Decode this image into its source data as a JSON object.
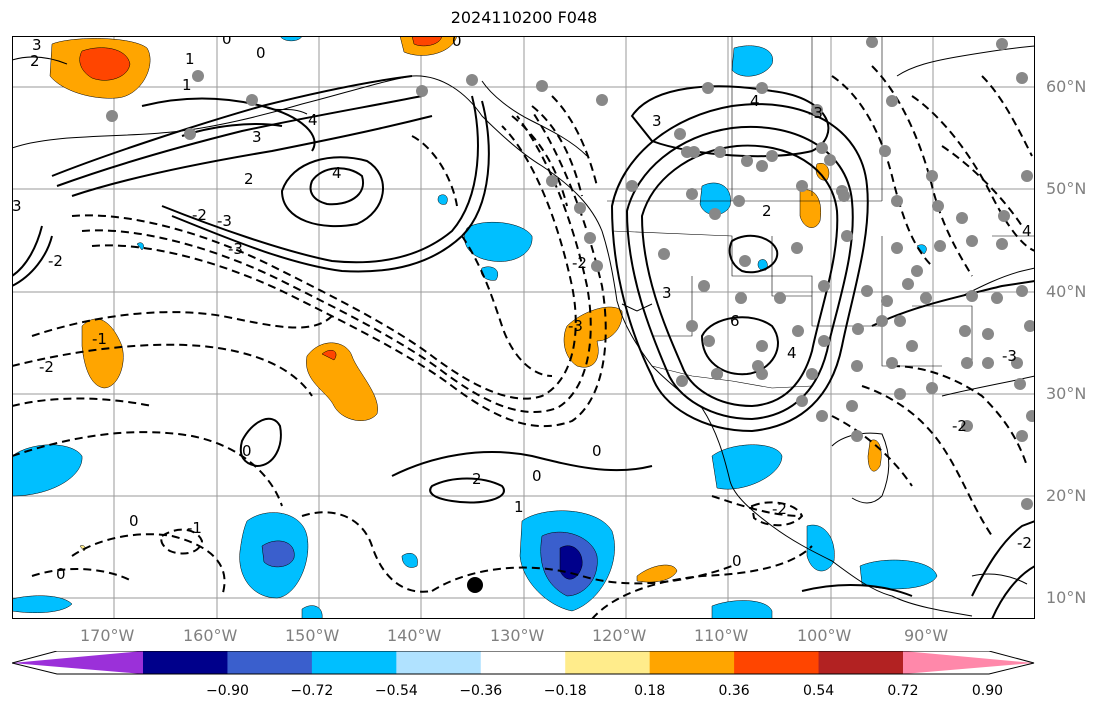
{
  "title": "2024110200 F048",
  "map": {
    "projection": "plate-carree",
    "lon_range": [
      -180,
      -80
    ],
    "lat_range": [
      8,
      65
    ],
    "latitude_labels": [
      "60°N",
      "50°N",
      "40°N",
      "30°N",
      "20°N",
      "10°N"
    ],
    "longitude_labels": [
      "170°W",
      "160°W",
      "150°W",
      "140°W",
      "130°W",
      "120°W",
      "110°W",
      "100°W",
      "90°W"
    ],
    "gridlines": true,
    "contour_labels": [
      "0",
      "1",
      "2",
      "3",
      "4",
      "6",
      "-1",
      "-2",
      "-3"
    ],
    "fill_colors": {
      "purple": "#9b30d9",
      "navy": "#00008b",
      "royal": "#3a5fcd",
      "deepsky": "#00bfff",
      "lightblue": "#b0e2ff",
      "yellow": "#ffec8b",
      "orange": "#ffa500",
      "orangered": "#ff4500",
      "firebrick": "#b22222",
      "pink": "#ff88aa"
    }
  },
  "colorbar": {
    "tick_labels": [
      "−0.90",
      "−0.72",
      "−0.54",
      "−0.36",
      "−0.18",
      "0.18",
      "0.36",
      "0.54",
      "0.72",
      "0.90"
    ],
    "bins": [
      "#9b30d9",
      "#00008b",
      "#3a5fcd",
      "#00bfff",
      "#b0e2ff",
      "#ffffff",
      "#ffec8b",
      "#ffa500",
      "#ff4500",
      "#b22222",
      "#ff88aa"
    ]
  }
}
